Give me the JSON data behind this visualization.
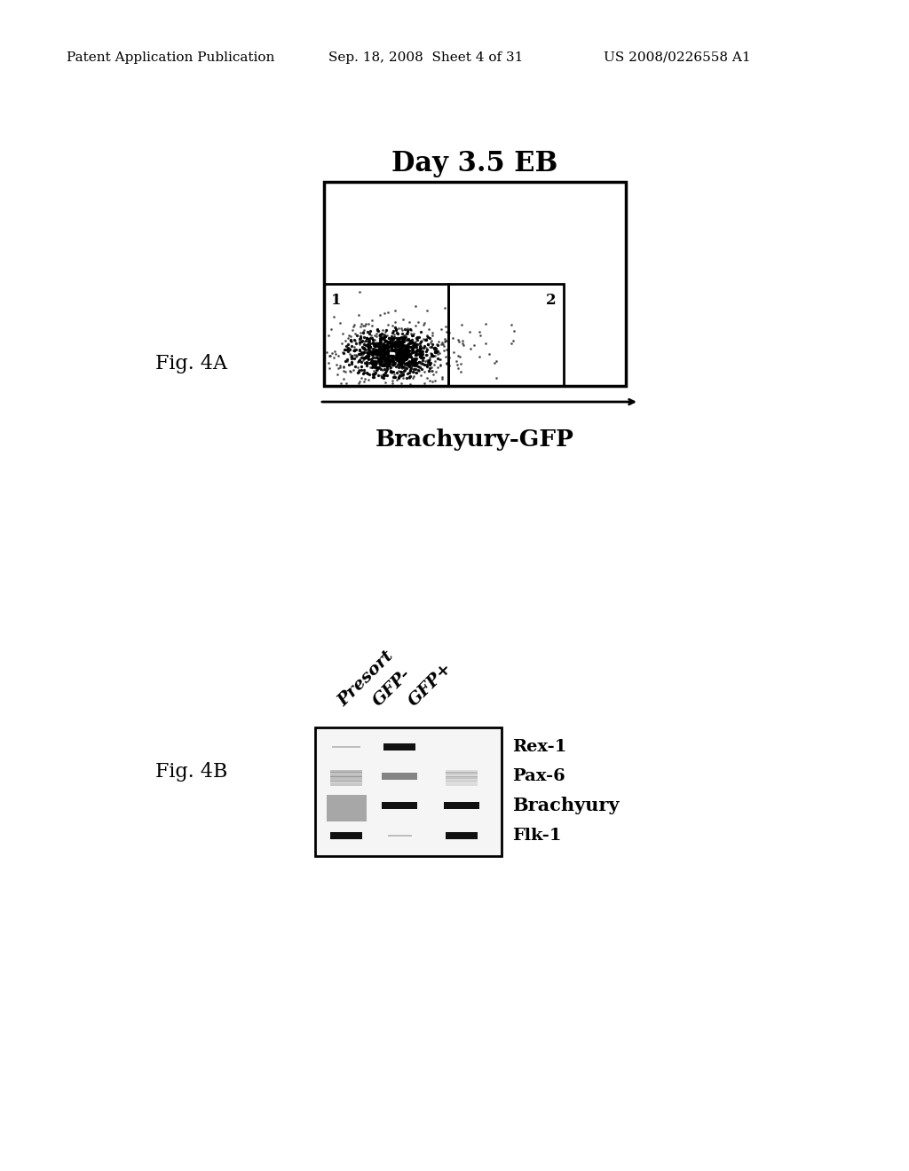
{
  "background_color": "#ffffff",
  "header_left": "Patent Application Publication",
  "header_center": "Sep. 18, 2008  Sheet 4 of 31",
  "header_right": "US 2008/0226558 A1",
  "fig4A_label": "Fig. 4A",
  "fig4B_label": "Fig. 4B",
  "panel_A_title": "Day 3.5 EB",
  "panel_A_xlabel": "Brachyury-GFP",
  "gene_labels": [
    "Rex-1",
    "Pax-6",
    "Brachyury",
    "Flk-1"
  ],
  "presort_label": "Presort",
  "gfp_minus_label": "GFP-",
  "gfp_plus_label": "GFP+"
}
